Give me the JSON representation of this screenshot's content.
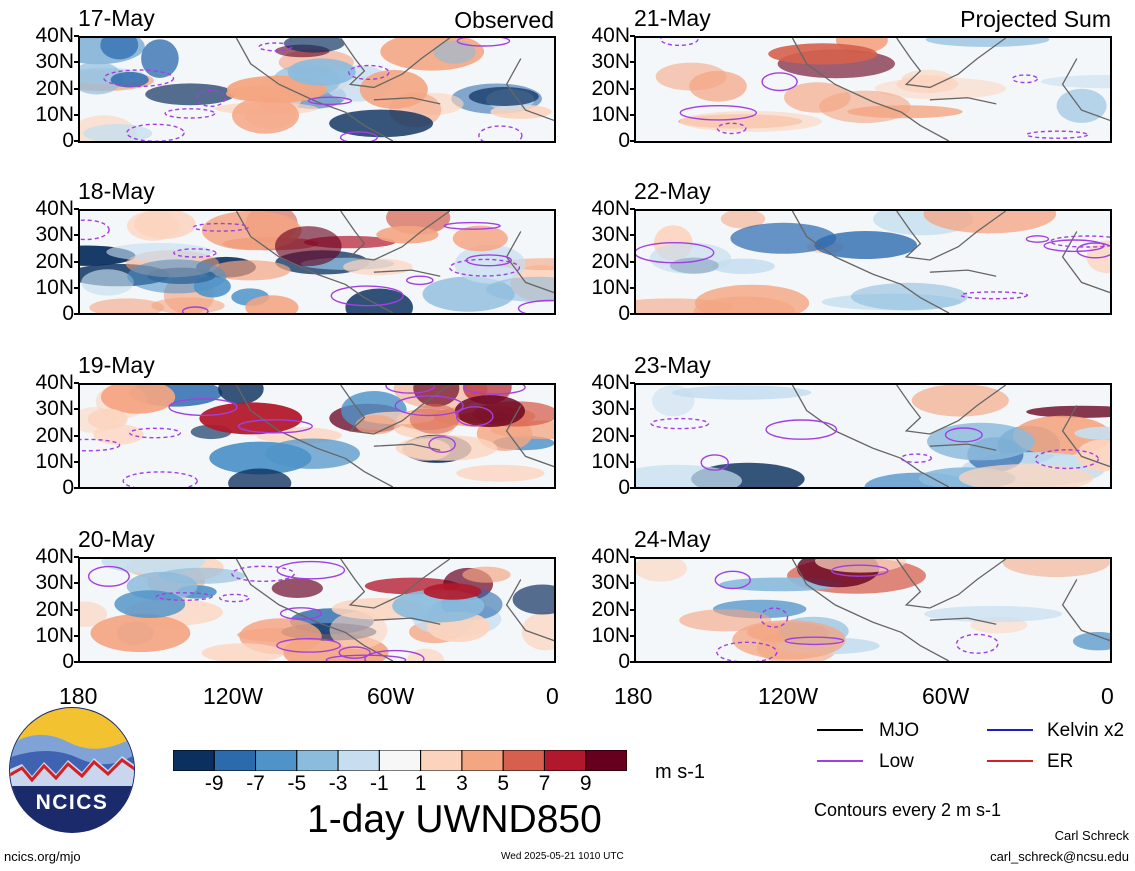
{
  "panels": {
    "left": [
      {
        "date": "17-May",
        "header": "Observed"
      },
      {
        "date": "18-May",
        "header": ""
      },
      {
        "date": "19-May",
        "header": ""
      },
      {
        "date": "20-May",
        "header": ""
      }
    ],
    "right": [
      {
        "date": "21-May",
        "header": "Projected Sum"
      },
      {
        "date": "22-May",
        "header": ""
      },
      {
        "date": "23-May",
        "header": ""
      },
      {
        "date": "24-May",
        "header": ""
      }
    ]
  },
  "lat_labels": [
    "40N",
    "30N",
    "20N",
    "10N",
    "0"
  ],
  "lon_labels": [
    "180",
    "120W",
    "60W",
    "0"
  ],
  "colorbar": {
    "labels": [
      "-9",
      "-7",
      "-5",
      "-3",
      "-1",
      "1",
      "3",
      "5",
      "7",
      "9"
    ],
    "colors": [
      "#0b2f5e",
      "#2c6aae",
      "#4f93c8",
      "#8bbbdd",
      "#c6deef",
      "#f7f7f7",
      "#fcd4be",
      "#f4a582",
      "#d6604d",
      "#b2182b",
      "#67001f"
    ],
    "units": "m s-1",
    "title": "1-day UWND850"
  },
  "legend": {
    "items": [
      {
        "label": "MJO",
        "color": "#000000"
      },
      {
        "label": "Kelvin x2",
        "color": "#1f1fbf"
      },
      {
        "label": "Low",
        "color": "#a23fe0"
      },
      {
        "label": "ER",
        "color": "#d42020"
      }
    ],
    "note": "Contours every 2 m s-1"
  },
  "footer": {
    "url": "ncics.org/mjo",
    "timestamp": "Wed 2025-05-21 1010 UTC",
    "author": "Carl Schreck",
    "email": "carl_schreck@ncsu.edu"
  },
  "logo": {
    "text": "NCICS"
  }
}
